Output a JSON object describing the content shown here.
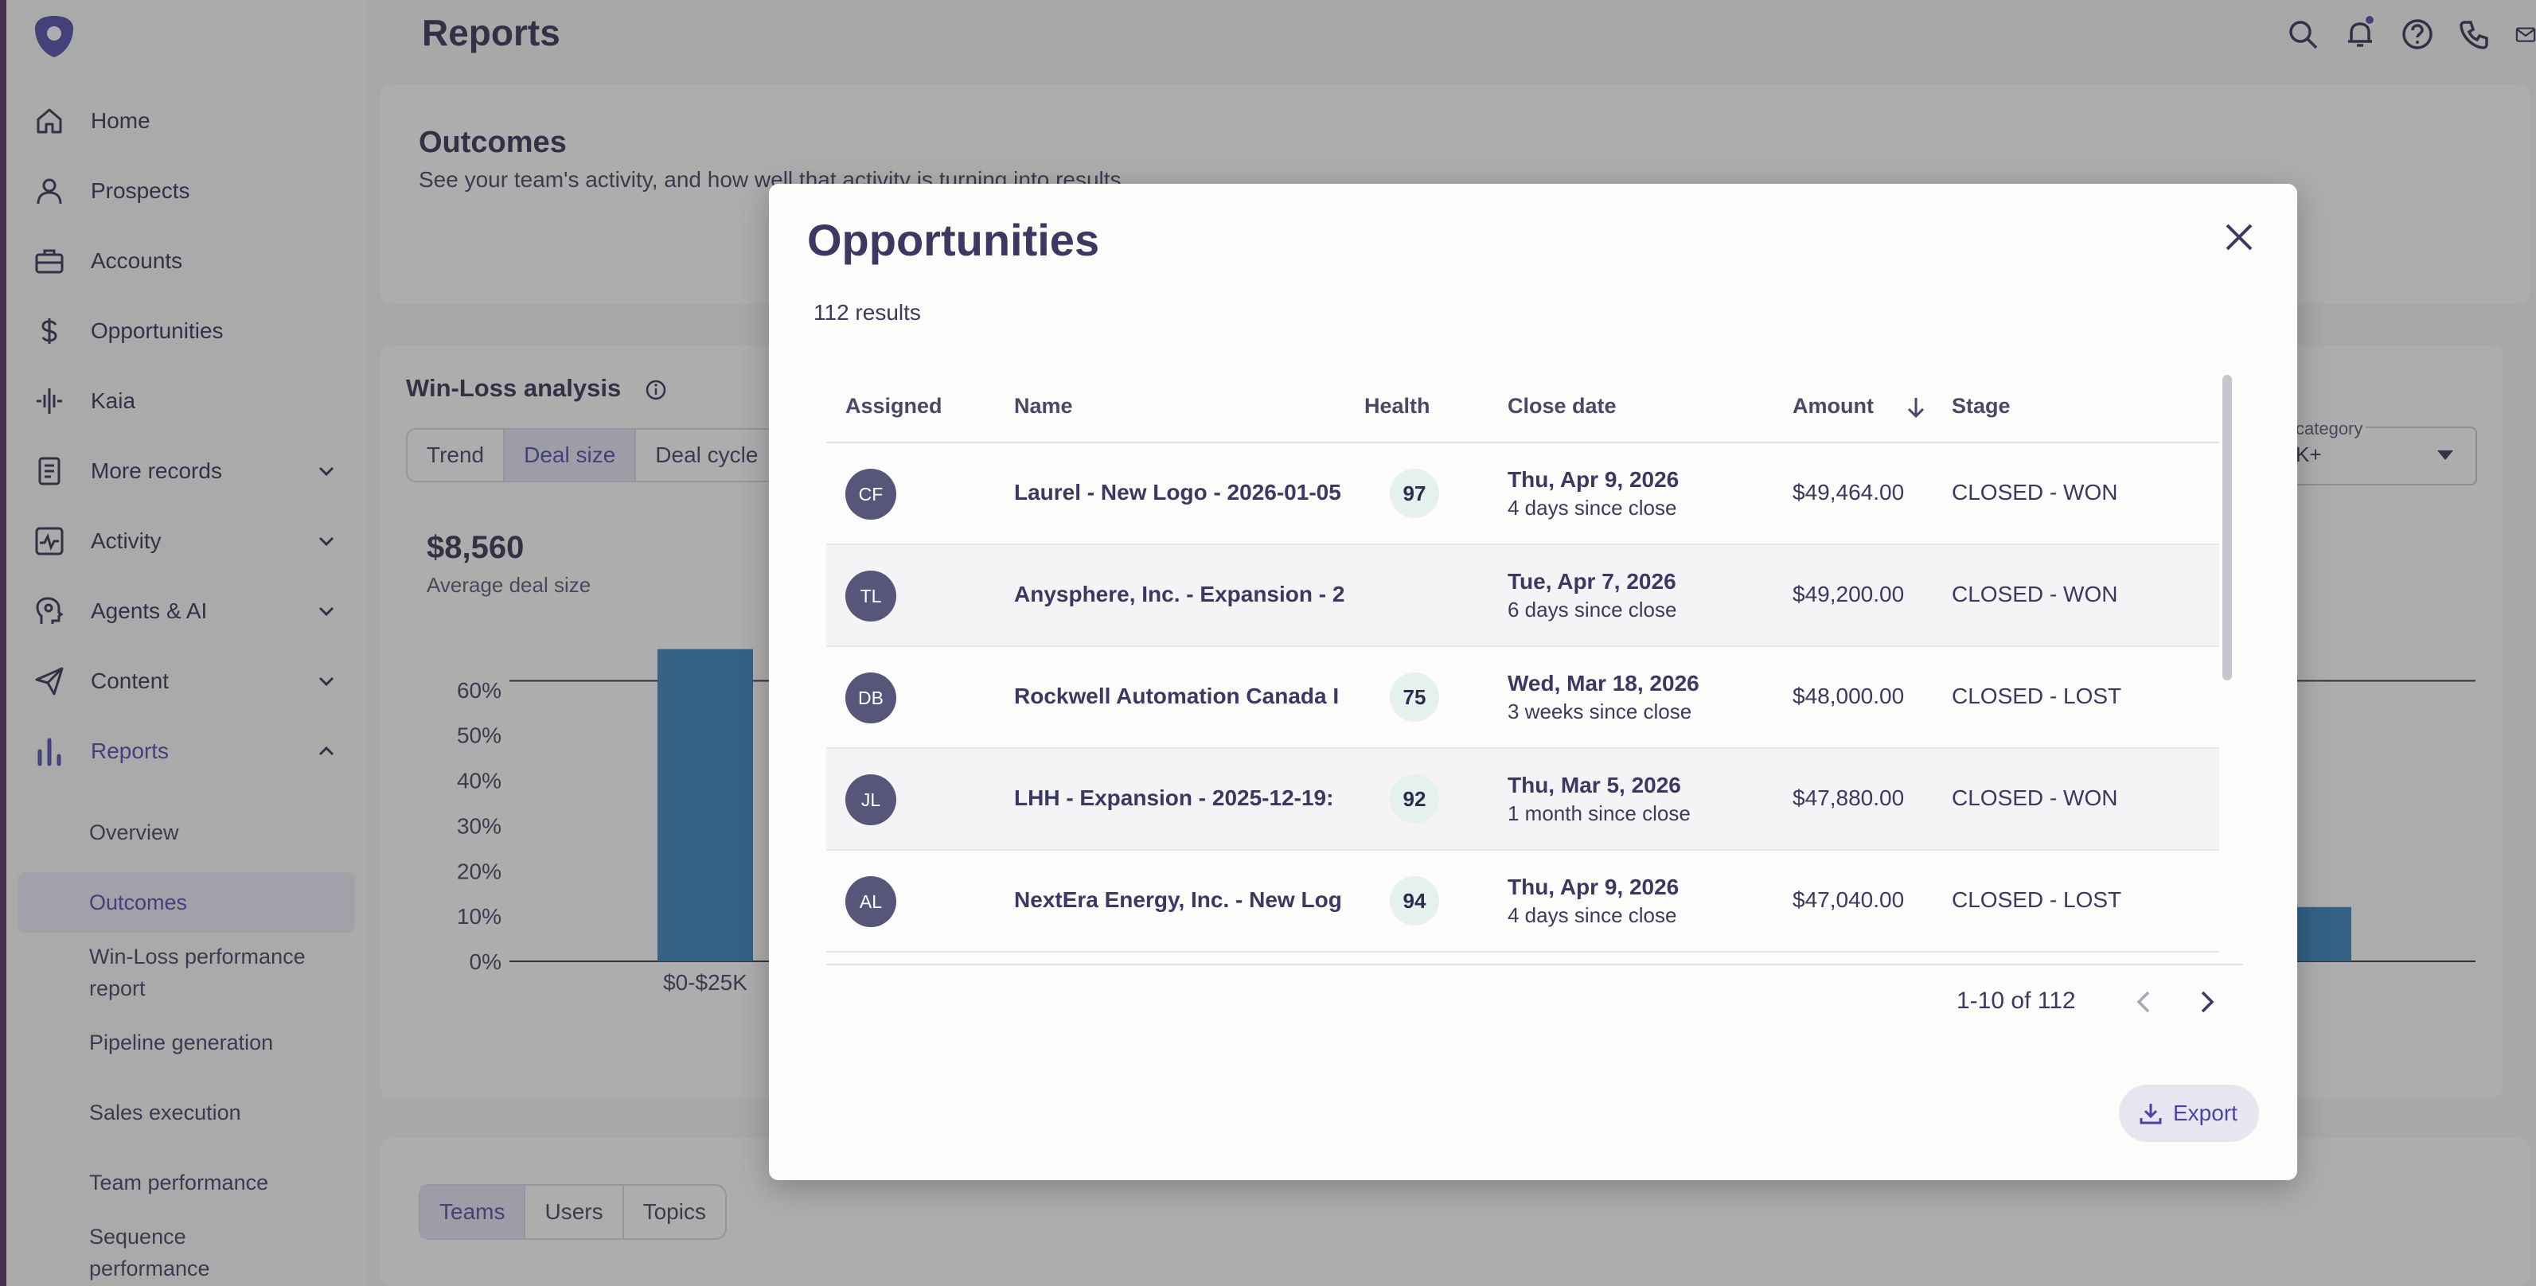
{
  "topbar": {
    "title": "Reports"
  },
  "sidebar": {
    "items": [
      {
        "label": "Home",
        "icon": "home-icon"
      },
      {
        "label": "Prospects",
        "icon": "person-icon"
      },
      {
        "label": "Accounts",
        "icon": "briefcase-icon"
      },
      {
        "label": "Opportunities",
        "icon": "dollar-icon"
      },
      {
        "label": "Kaia",
        "icon": "waveform-icon"
      },
      {
        "label": "More records",
        "icon": "records-icon"
      },
      {
        "label": "Activity",
        "icon": "activity-icon"
      },
      {
        "label": "Agents & AI",
        "icon": "agent-icon"
      },
      {
        "label": "Content",
        "icon": "send-icon"
      },
      {
        "label": "Reports",
        "icon": "bar-chart-icon"
      }
    ],
    "reports_sub": [
      "Overview",
      "Outcomes",
      "Win-Loss performance",
      "report",
      "Pipeline generation",
      "Sales execution",
      "Team performance",
      "Sequence",
      "performance"
    ]
  },
  "outcomes": {
    "title": "Outcomes",
    "subtitle": "See your team's activity, and how well that activity is turning into results"
  },
  "winloss": {
    "title": "Win-Loss analysis",
    "tabs": [
      "Trend",
      "Deal size",
      "Deal cycle"
    ],
    "kpi_value": "$8,560",
    "kpi_label": "Average deal size",
    "category_label": "category",
    "category_value": "K+",
    "right_tick": "+"
  },
  "chart_data": {
    "type": "bar",
    "categories": [
      "$0-$25K"
    ],
    "values": [
      69
    ],
    "yticks": [
      "0%",
      "10%",
      "20%",
      "30%",
      "40%",
      "50%",
      "60%"
    ],
    "ylim": [
      0,
      70
    ]
  },
  "bottom_tabs": [
    "Teams",
    "Users",
    "Topics"
  ],
  "modal": {
    "title": "Opportunities",
    "results": "112 results",
    "columns": [
      "Assigned",
      "Name",
      "Health",
      "Close date",
      "Amount",
      "Stage"
    ],
    "rows": [
      {
        "initials": "CF",
        "name": "Laurel - New Logo - 2026-01-05",
        "health": "97",
        "date": "Thu, Apr 9, 2026",
        "since": "4 days since close",
        "amount": "$49,464.00",
        "stage": "CLOSED - WON"
      },
      {
        "initials": "TL",
        "name": "Anysphere, Inc. - Expansion - 2",
        "health": "",
        "date": "Tue, Apr 7, 2026",
        "since": "6 days since close",
        "amount": "$49,200.00",
        "stage": "CLOSED - WON"
      },
      {
        "initials": "DB",
        "name": "Rockwell Automation Canada I",
        "health": "75",
        "date": "Wed, Mar 18, 2026",
        "since": "3 weeks since close",
        "amount": "$48,000.00",
        "stage": "CLOSED - LOST"
      },
      {
        "initials": "JL",
        "name": "LHH - Expansion - 2025-12-19:",
        "health": "92",
        "date": "Thu, Mar 5, 2026",
        "since": "1 month since close",
        "amount": "$47,880.00",
        "stage": "CLOSED - WON"
      },
      {
        "initials": "AL",
        "name": "NextEra Energy, Inc. - New Log",
        "health": "94",
        "date": "Thu, Apr 9, 2026",
        "since": "4 days since close",
        "amount": "$47,040.00",
        "stage": "CLOSED - LOST"
      }
    ],
    "pager": "1-10 of 112",
    "export_label": "Export"
  },
  "colors": {
    "accent": "#4a44a8",
    "bar": "#2f7db8",
    "avatar": "#58557a",
    "health_bg": "#e4f1ec"
  }
}
